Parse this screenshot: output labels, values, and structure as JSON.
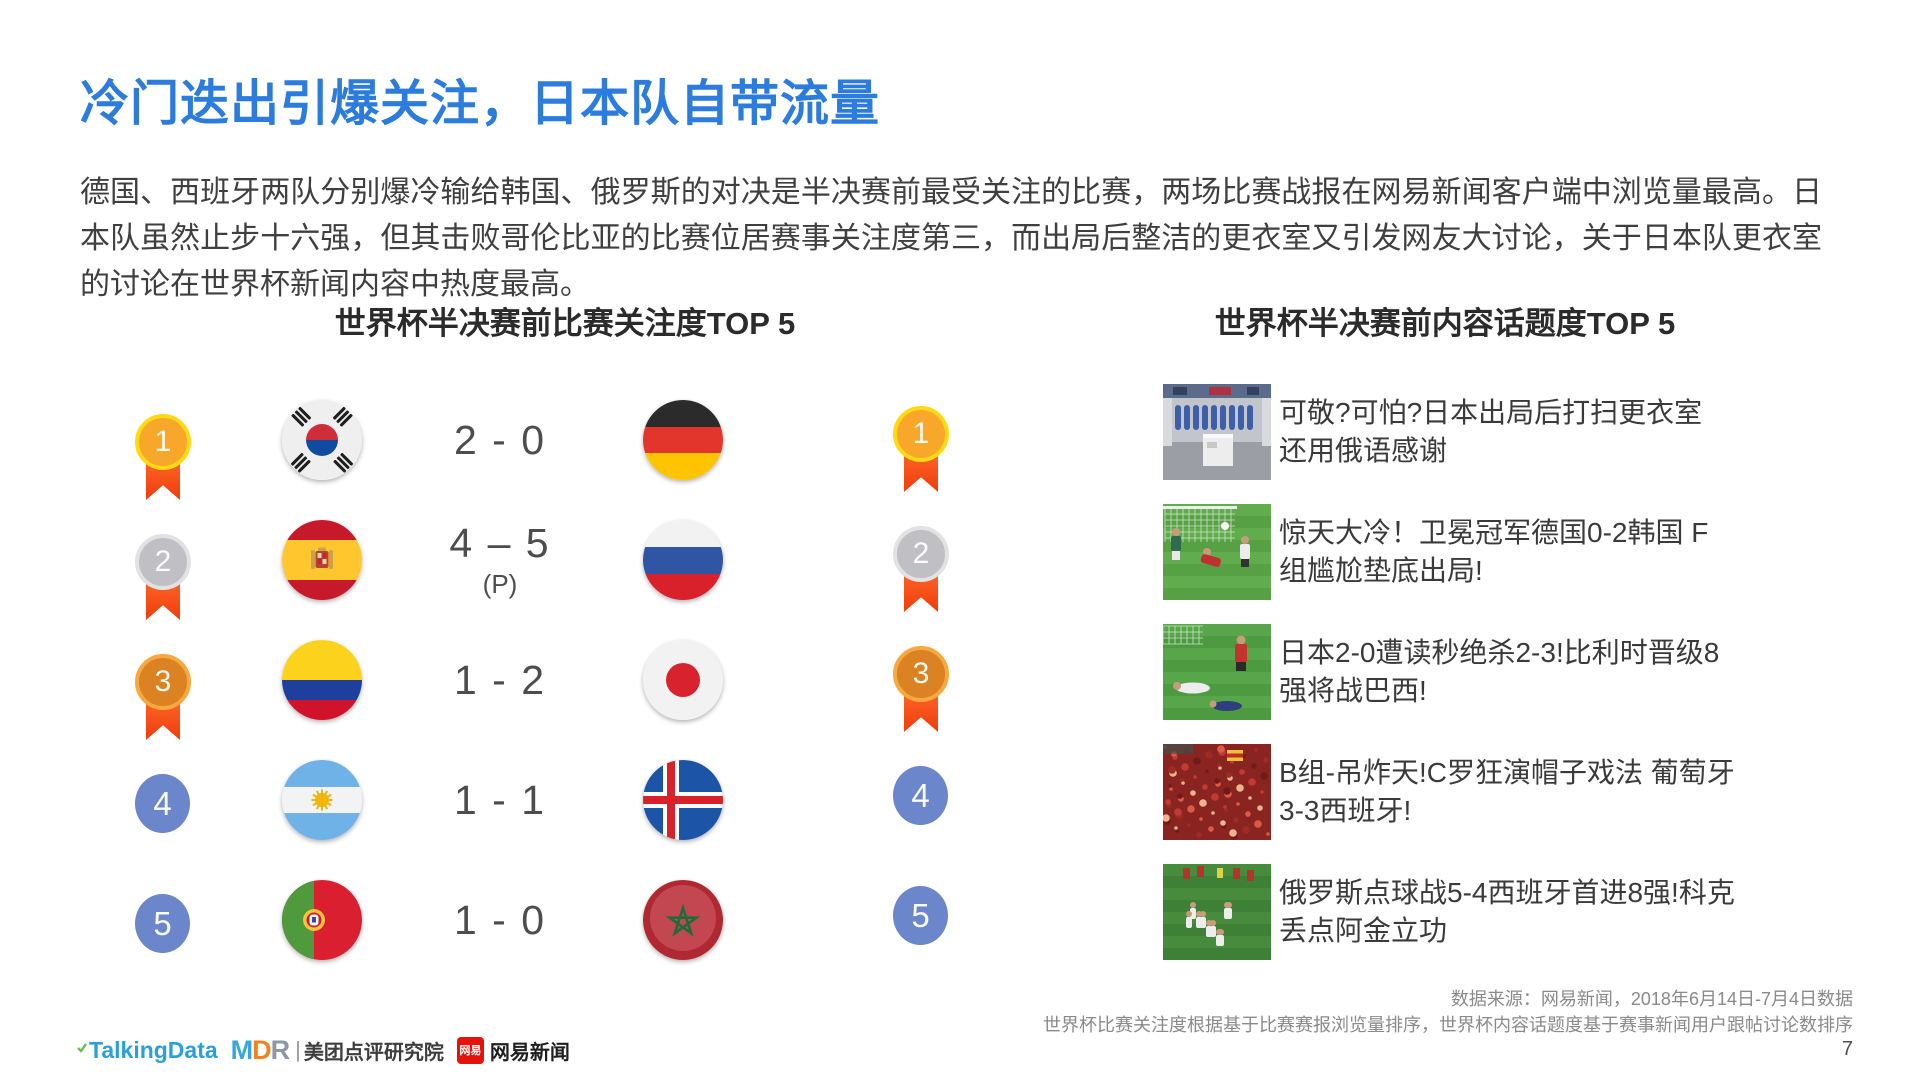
{
  "slide": {
    "title": "冷门迭出引爆关注，日本队自带流量",
    "paragraph": "德国、西班牙两队分别爆冷输给韩国、俄罗斯的对决是半决赛前最受关注的比赛，两场比赛战报在网易新闻客户端中浏览量最高。日本队虽然止步十六强，但其击败哥伦比亚的比赛位居赛事关注度第三，而出局后整洁的更衣室又引发网友大讨论，关于日本队更衣室的讨论在世界杯新闻内容中热度最高。",
    "page_number": "7"
  },
  "left_ranking": {
    "title": "世界杯半决赛前比赛关注度TOP 5",
    "rows": [
      {
        "rank": "1",
        "medal": "gold",
        "home_flag": "south-korea",
        "home_team": "韩国",
        "score": "2 - 0",
        "score_note": "",
        "away_flag": "germany",
        "away_team": "德国"
      },
      {
        "rank": "2",
        "medal": "silver",
        "home_flag": "spain",
        "home_team": "西班牙",
        "score": "4 – 5",
        "score_note": "(P)",
        "away_flag": "russia",
        "away_team": "俄罗斯"
      },
      {
        "rank": "3",
        "medal": "bronze",
        "home_flag": "colombia",
        "home_team": "哥伦比亚",
        "score": "1 - 2",
        "score_note": "",
        "away_flag": "japan",
        "away_team": "日本"
      },
      {
        "rank": "4",
        "medal": "plain",
        "home_flag": "argentina",
        "home_team": "阿根廷",
        "score": "1 - 1",
        "score_note": "",
        "away_flag": "iceland",
        "away_team": "冰岛"
      },
      {
        "rank": "5",
        "medal": "plain",
        "home_flag": "portugal",
        "home_team": "葡萄牙",
        "score": "1 - 0",
        "score_note": "",
        "away_flag": "morocco",
        "away_team": "摩洛哥"
      }
    ]
  },
  "right_ranking": {
    "title": "世界杯半决赛前内容话题度TOP 5",
    "items": [
      {
        "rank": "1",
        "medal": "gold",
        "thumb": "locker-room",
        "headline": "可敬?可怕?日本出局后打扫更衣室 还用俄语感谢"
      },
      {
        "rank": "2",
        "medal": "silver",
        "thumb": "goal-scene",
        "headline": "惊天大冷！卫冕冠军德国0-2韩国 F组尴尬垫底出局!"
      },
      {
        "rank": "3",
        "medal": "bronze",
        "thumb": "players-down",
        "headline": "日本2-0遭读秒绝杀2-3!比利时晋级8强将战巴西!"
      },
      {
        "rank": "4",
        "medal": "plain",
        "thumb": "red-crowd",
        "headline": "B组-吊炸天!C罗狂演帽子戏法 葡萄牙3-3西班牙!"
      },
      {
        "rank": "5",
        "medal": "plain",
        "thumb": "team-celebration",
        "headline": "俄罗斯点球战5-4西班牙首进8强!科克丢点阿金立功"
      }
    ]
  },
  "footer": {
    "source_line1": "数据来源：网易新闻，2018年6月14日-7月4日数据",
    "source_line2": "世界杯比赛关注度根据基于比赛赛报浏览量排序，世界杯内容话题度基于赛事新闻用户跟帖讨论数排序",
    "logos": {
      "talkingdata": "TalkingData",
      "mdr_m": "M",
      "mdr_d": "D",
      "mdr_r": "R",
      "mdr_divider": "|",
      "mdr_cn": "美团点评研究院",
      "netease_badge": "网易",
      "netease_label": "网易新闻"
    }
  },
  "colors": {
    "title_blue": "#2C7CDE",
    "rank_plain_blue": "#6C86CB",
    "medal_gold": "#F7A82B",
    "medal_silver": "#BFBFC4",
    "medal_bronze": "#DB8222",
    "ribbon_orange": "#F5500F",
    "body_text": "#3F3F3F"
  }
}
